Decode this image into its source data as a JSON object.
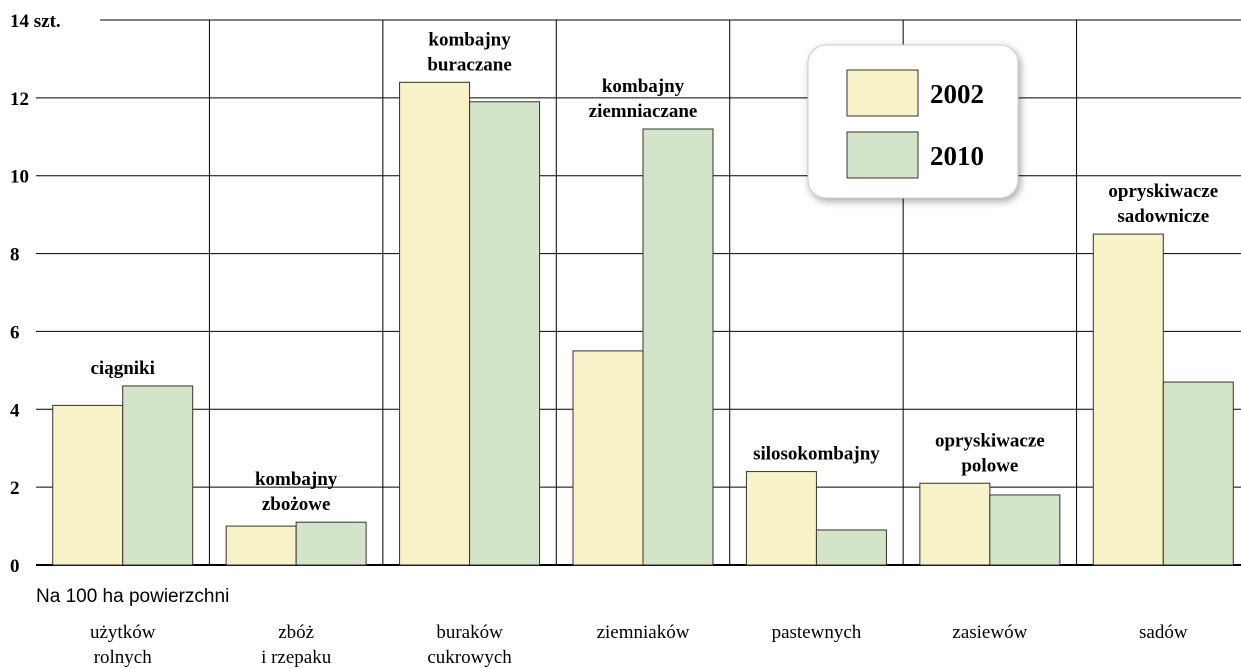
{
  "chart_data": {
    "type": "bar",
    "ylim": [
      0,
      14
    ],
    "yticks": [
      0,
      2,
      4,
      6,
      8,
      10,
      12,
      {
        "value": 14,
        "label": "14 szt."
      }
    ],
    "grid": true,
    "x_label": "Na 100 ha powierzchni",
    "categories": [
      [
        "użytków",
        "rolnych"
      ],
      [
        "zbóż",
        "i rzepaku"
      ],
      [
        "buraków",
        "cukrowych"
      ],
      [
        "ziemniaków"
      ],
      [
        "pastewnych"
      ],
      [
        "zasiewów"
      ],
      [
        "sadów"
      ]
    ],
    "annotations": [
      [
        "ciągniki"
      ],
      [
        "kombajny",
        "zbożowe"
      ],
      [
        "kombajny",
        "buraczane"
      ],
      [
        "kombajny",
        "ziemniaczane"
      ],
      [
        "silosokombajny"
      ],
      [
        "opryskiwacze",
        "polowe"
      ],
      [
        "opryskiwacze",
        "sadownicze"
      ]
    ],
    "series": [
      {
        "name": "2002",
        "color": "#f8f2c8",
        "values": [
          4.1,
          1.0,
          12.4,
          5.5,
          2.4,
          2.1,
          8.5
        ]
      },
      {
        "name": "2010",
        "color": "#d4e4c8",
        "values": [
          4.6,
          1.1,
          11.9,
          11.2,
          0.9,
          1.8,
          4.7
        ]
      }
    ]
  }
}
